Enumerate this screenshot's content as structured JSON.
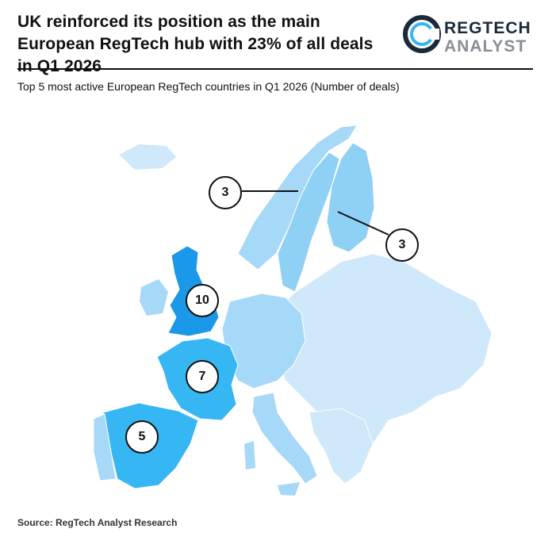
{
  "header": {
    "headline": "UK reinforced its position as the main European RegTech hub with 23% of all deals in Q1 2026",
    "subtitle": "Top 5 most active European RegTech countries in Q1 2026 (Number of deals)"
  },
  "logo": {
    "line1": "REGTECH",
    "line2": "ANALYST",
    "icon": "ring-logo-icon"
  },
  "colors": {
    "base": "#cfe9fb",
    "mid": "#a6d8f7",
    "light_blue": "#8fd0f5",
    "strong": "#36b6f3",
    "top": "#1b98e8",
    "logo_dark": "#1a2a3a",
    "logo_grey": "#888f96"
  },
  "map_data": {
    "type": "choropleth",
    "countries": [
      {
        "name": "United Kingdom",
        "deals": 10
      },
      {
        "name": "France",
        "deals": 7
      },
      {
        "name": "Spain",
        "deals": 5
      },
      {
        "name": "Sweden",
        "deals": 3
      },
      {
        "name": "Finland",
        "deals": 3
      }
    ]
  },
  "labels": {
    "uk": "10",
    "france": "7",
    "spain": "5",
    "sweden": "3",
    "finland": "3"
  },
  "footer": {
    "source": "Source: RegTech Analyst Research"
  }
}
